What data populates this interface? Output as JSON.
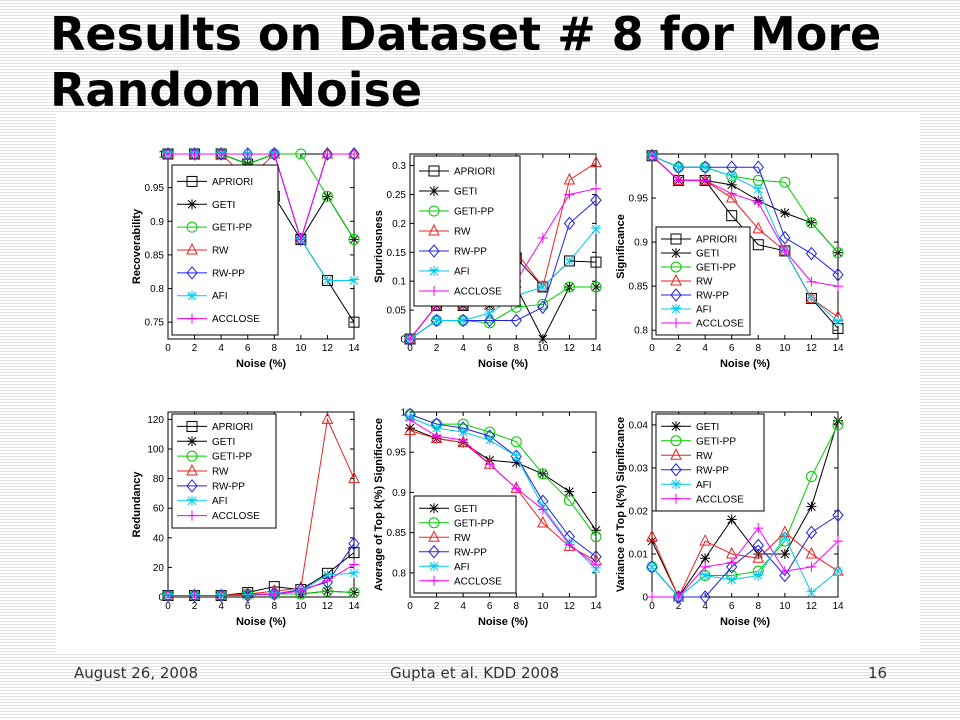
{
  "slide": {
    "title_line1": "Results on Dataset # 8 for More",
    "title_line2": "Random Noise",
    "footer": {
      "date": "August 26, 2008",
      "citation": "Gupta et al. KDD 2008",
      "page_number": "16"
    }
  },
  "colors": {
    "APRIORI": "#000000",
    "GETI": "#000000",
    "GETI-PP": "#00cc00",
    "RW": "#ee2222",
    "RW-PP": "#2222ee",
    "AFI": "#00ccee",
    "ACCLOSE": "#ff00ff"
  },
  "markers": {
    "APRIORI": "square",
    "GETI": "asterisk",
    "GETI-PP": "circle",
    "RW": "triangle",
    "RW-PP": "diamond",
    "AFI": "star",
    "ACCLOSE": "plus"
  },
  "chart_data": [
    {
      "type": "line",
      "xlabel": "Noise (%)",
      "ylabel": "Recoverability",
      "x": [
        0,
        2,
        4,
        6,
        8,
        10,
        12,
        14
      ],
      "xlim": [
        0,
        14
      ],
      "xticks": [
        "0",
        "2",
        "4",
        "6",
        "8",
        "10",
        "12",
        "14"
      ],
      "ylim": [
        0.725,
        1.0
      ],
      "yticks": [
        "0.75",
        "0.8",
        "0.85",
        "0.9",
        "0.95",
        "1"
      ],
      "legend_position": "bottom-left",
      "series": [
        {
          "name": "APRIORI",
          "values": [
            1,
            1,
            1,
            0.985,
            0.937,
            0.873,
            0.812,
            0.75
          ]
        },
        {
          "name": "GETI",
          "values": [
            1,
            1,
            1,
            0.985,
            1,
            0.873,
            0.937,
            0.873
          ]
        },
        {
          "name": "GETI-PP",
          "values": [
            1,
            1,
            1,
            0.985,
            1,
            1,
            0.937,
            0.873
          ]
        },
        {
          "name": "RW",
          "values": [
            1,
            1,
            1,
            0.962,
            1,
            0.873,
            1,
            1
          ]
        },
        {
          "name": "RW-PP",
          "values": [
            1,
            1,
            1,
            1,
            1,
            0.873,
            1,
            1
          ]
        },
        {
          "name": "AFI",
          "values": [
            1,
            1,
            1,
            1,
            1,
            0.873,
            0.812,
            0.812
          ]
        },
        {
          "name": "ACCLOSE",
          "values": [
            1,
            1,
            1,
            1,
            1,
            0.873,
            1,
            1
          ]
        }
      ]
    },
    {
      "type": "line",
      "xlabel": "Noise (%)",
      "ylabel": "Spuriousness",
      "x": [
        0,
        2,
        4,
        6,
        8,
        10,
        12,
        14
      ],
      "xlim": [
        0,
        14
      ],
      "xticks": [
        "0",
        "2",
        "4",
        "6",
        "8",
        "10",
        "12",
        "14"
      ],
      "ylim": [
        0,
        0.32
      ],
      "yticks": [
        "0",
        "0.05",
        "0.1",
        "0.15",
        "0.2",
        "0.25",
        "0.3"
      ],
      "legend_position": "top-left",
      "series": [
        {
          "name": "APRIORI",
          "values": [
            0,
            0.058,
            0.058,
            0.12,
            0.14,
            0.09,
            0.135,
            0.133
          ]
        },
        {
          "name": "GETI",
          "values": [
            0,
            0.058,
            0.058,
            0.058,
            0.09,
            0,
            0.09,
            0.09
          ]
        },
        {
          "name": "GETI-PP",
          "values": [
            0,
            0.032,
            0.032,
            0.028,
            0.055,
            0.06,
            0.09,
            0.09
          ]
        },
        {
          "name": "RW",
          "values": [
            0,
            0.058,
            0.058,
            0.058,
            0.15,
            0.09,
            0.275,
            0.305
          ]
        },
        {
          "name": "RW-PP",
          "values": [
            0,
            0.032,
            0.032,
            0.032,
            0.032,
            0.055,
            0.2,
            0.24
          ]
        },
        {
          "name": "AFI",
          "values": [
            0,
            0.032,
            0.032,
            0.045,
            0.075,
            0.09,
            0.135,
            0.19
          ]
        },
        {
          "name": "ACCLOSE",
          "values": [
            0,
            0.058,
            0.058,
            0.09,
            0.1,
            0.175,
            0.25,
            0.26
          ]
        }
      ]
    },
    {
      "type": "line",
      "xlabel": "Noise (%)",
      "ylabel": "Significance",
      "x": [
        0,
        2,
        4,
        6,
        8,
        10,
        12,
        14
      ],
      "xlim": [
        0,
        14
      ],
      "xticks": [
        "0",
        "2",
        "4",
        "6",
        "8",
        "10",
        "12",
        "14"
      ],
      "ylim": [
        0.79,
        1.0
      ],
      "yticks": [
        "0.8",
        "0.85",
        "0.9",
        "0.95"
      ],
      "legend_position": "bottom-left",
      "series": [
        {
          "name": "APRIORI",
          "values": [
            0.998,
            0.97,
            0.97,
            0.93,
            0.897,
            0.89,
            0.836,
            0.802
          ]
        },
        {
          "name": "GETI",
          "values": [
            0.998,
            0.97,
            0.97,
            0.965,
            0.947,
            0.933,
            0.922,
            0.888
          ]
        },
        {
          "name": "GETI-PP",
          "values": [
            0.998,
            0.985,
            0.985,
            0.975,
            0.97,
            0.968,
            0.922,
            0.888
          ]
        },
        {
          "name": "RW",
          "values": [
            0.998,
            0.97,
            0.97,
            0.95,
            0.915,
            0.89,
            0.836,
            0.815
          ]
        },
        {
          "name": "RW-PP",
          "values": [
            0.998,
            0.985,
            0.985,
            0.985,
            0.985,
            0.905,
            0.887,
            0.863
          ]
        },
        {
          "name": "AFI",
          "values": [
            0.998,
            0.985,
            0.985,
            0.975,
            0.96,
            0.89,
            0.836,
            0.81
          ]
        },
        {
          "name": "ACCLOSE",
          "values": [
            0.998,
            0.97,
            0.97,
            0.955,
            0.945,
            0.89,
            0.855,
            0.85
          ]
        }
      ]
    },
    {
      "type": "line",
      "xlabel": "Noise (%)",
      "ylabel": "Redundancy",
      "x": [
        0,
        2,
        4,
        6,
        8,
        10,
        12,
        14
      ],
      "xlim": [
        0,
        14
      ],
      "xticks": [
        "0",
        "2",
        "4",
        "6",
        "8",
        "10",
        "12",
        "14"
      ],
      "ylim": [
        0,
        125
      ],
      "yticks": [
        "0",
        "20",
        "40",
        "60",
        "80",
        "100",
        "120"
      ],
      "legend_position": "top-left",
      "series": [
        {
          "name": "APRIORI",
          "values": [
            1,
            1,
            1,
            3,
            7,
            5,
            16,
            30
          ]
        },
        {
          "name": "GETI",
          "values": [
            1,
            1,
            1,
            2,
            2,
            2,
            4,
            3
          ]
        },
        {
          "name": "GETI-PP",
          "values": [
            1,
            1,
            1,
            2,
            2,
            2,
            4,
            3
          ]
        },
        {
          "name": "RW",
          "values": [
            1,
            1,
            1,
            2,
            4,
            6,
            120,
            80
          ]
        },
        {
          "name": "RW-PP",
          "values": [
            1,
            1,
            1,
            1,
            2,
            5,
            10,
            36
          ]
        },
        {
          "name": "AFI",
          "values": [
            1,
            1,
            1,
            1,
            2,
            4,
            15,
            16
          ]
        },
        {
          "name": "ACCLOSE",
          "values": [
            1,
            1,
            1,
            1,
            2,
            4,
            11,
            22
          ]
        }
      ]
    },
    {
      "type": "line",
      "xlabel": "Noise (%)",
      "ylabel": "Average of Top k(%) Significance",
      "x": [
        0,
        2,
        4,
        6,
        8,
        10,
        12,
        14
      ],
      "xlim": [
        0,
        14
      ],
      "xticks": [
        "0",
        "2",
        "4",
        "6",
        "8",
        "10",
        "12",
        "14"
      ],
      "ylim": [
        0.77,
        1.0
      ],
      "yticks": [
        "0.8",
        "0.85",
        "0.9",
        "0.95",
        "1"
      ],
      "legend_position": "bottom-left",
      "series": [
        {
          "name": "GETI",
          "values": [
            0.98,
            0.967,
            0.962,
            0.94,
            0.937,
            0.923,
            0.901,
            0.853
          ]
        },
        {
          "name": "GETI-PP",
          "values": [
            0.997,
            0.985,
            0.985,
            0.975,
            0.963,
            0.923,
            0.89,
            0.845
          ]
        },
        {
          "name": "RW",
          "values": [
            0.977,
            0.967,
            0.962,
            0.935,
            0.905,
            0.862,
            0.833,
            0.815
          ]
        },
        {
          "name": "RW-PP",
          "values": [
            0.997,
            0.985,
            0.98,
            0.97,
            0.945,
            0.889,
            0.845,
            0.82
          ]
        },
        {
          "name": "AFI",
          "values": [
            0.993,
            0.98,
            0.975,
            0.965,
            0.945,
            0.882,
            0.837,
            0.805
          ]
        },
        {
          "name": "ACCLOSE",
          "values": [
            0.99,
            0.97,
            0.965,
            0.935,
            0.905,
            0.879,
            0.835,
            0.81
          ]
        }
      ]
    },
    {
      "type": "line",
      "xlabel": "Noise (%)",
      "ylabel": "Variance of Top k(%) Significance",
      "x": [
        0,
        2,
        4,
        6,
        8,
        10,
        12,
        14
      ],
      "xlim": [
        0,
        14
      ],
      "xticks": [
        "0",
        "2",
        "4",
        "6",
        "8",
        "10",
        "12",
        "14"
      ],
      "ylim": [
        0,
        0.043
      ],
      "yticks": [
        "0",
        "0.01",
        "0.02",
        "0.03",
        "0.04"
      ],
      "legend_position": "top-left",
      "series": [
        {
          "name": "GETI",
          "values": [
            0.013,
            0,
            0.009,
            0.018,
            0.01,
            0.01,
            0.021,
            0.041
          ]
        },
        {
          "name": "GETI-PP",
          "values": [
            0.007,
            0,
            0.005,
            0.005,
            0.006,
            0.013,
            0.028,
            0.04
          ]
        },
        {
          "name": "RW",
          "values": [
            0.014,
            0,
            0.013,
            0.01,
            0.009,
            0.015,
            0.01,
            0.006
          ]
        },
        {
          "name": "RW-PP",
          "values": [
            0.007,
            0,
            0,
            0.007,
            0.012,
            0.005,
            0.015,
            0.019
          ]
        },
        {
          "name": "AFI",
          "values": [
            0.007,
            0,
            0.005,
            0.004,
            0.005,
            0.014,
            0.001,
            0.006
          ]
        },
        {
          "name": "ACCLOSE",
          "values": [
            0,
            0,
            0.007,
            0.008,
            0.016,
            0.006,
            0.007,
            0.013
          ]
        }
      ]
    }
  ]
}
